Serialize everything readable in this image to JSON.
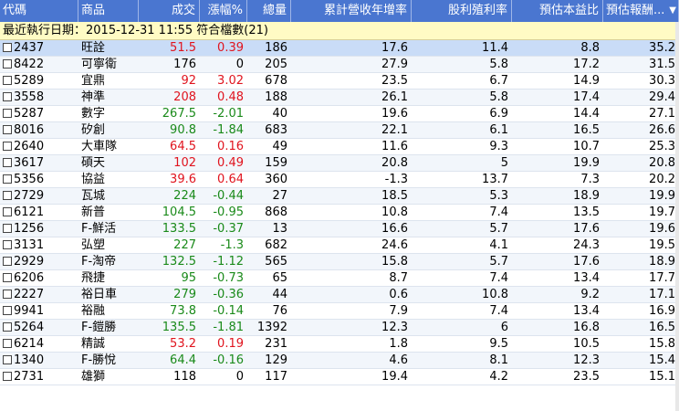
{
  "columns": {
    "code": "代碼",
    "name": "商品",
    "price": "成交",
    "change_pct": "漲幅%",
    "volume": "總量",
    "rev_growth": "累計營收年增率",
    "dividend_yield": "股利殖利率",
    "est_pe": "預估本益比",
    "est_return": "預估報酬..."
  },
  "info_bar": "最近執行日期：2015-12-31 11:55 符合檔數(21)",
  "colors": {
    "header": "#4a76d0",
    "info": "#fffbc4",
    "up": "#e0141e",
    "down": "#1a8a1a"
  },
  "rows": [
    {
      "code": "2437",
      "name": "旺詮",
      "price": "51.5",
      "chg": "0.39",
      "dir": "up",
      "vol": "186",
      "rev": "17.6",
      "div": "11.4",
      "pe": "8.8",
      "ret": "35.2"
    },
    {
      "code": "8422",
      "name": "可寧衛",
      "price": "176",
      "chg": "0",
      "dir": "flat",
      "vol": "205",
      "rev": "27.9",
      "div": "5.8",
      "pe": "17.2",
      "ret": "31.5"
    },
    {
      "code": "5289",
      "name": "宜鼎",
      "price": "92",
      "chg": "3.02",
      "dir": "up",
      "vol": "678",
      "rev": "23.5",
      "div": "6.7",
      "pe": "14.9",
      "ret": "30.3"
    },
    {
      "code": "3558",
      "name": "神準",
      "price": "208",
      "chg": "0.48",
      "dir": "up",
      "vol": "188",
      "rev": "26.1",
      "div": "5.8",
      "pe": "17.4",
      "ret": "29.4"
    },
    {
      "code": "5287",
      "name": "數字",
      "price": "267.5",
      "chg": "-2.01",
      "dir": "down",
      "vol": "40",
      "rev": "19.6",
      "div": "6.9",
      "pe": "14.4",
      "ret": "27.1"
    },
    {
      "code": "8016",
      "name": "矽創",
      "price": "90.8",
      "chg": "-1.84",
      "dir": "down",
      "vol": "683",
      "rev": "22.1",
      "div": "6.1",
      "pe": "16.5",
      "ret": "26.6"
    },
    {
      "code": "2640",
      "name": "大車隊",
      "price": "64.5",
      "chg": "0.16",
      "dir": "up",
      "vol": "49",
      "rev": "11.6",
      "div": "9.3",
      "pe": "10.7",
      "ret": "25.3"
    },
    {
      "code": "3617",
      "name": "碩天",
      "price": "102",
      "chg": "0.49",
      "dir": "up",
      "vol": "159",
      "rev": "20.8",
      "div": "5",
      "pe": "19.9",
      "ret": "20.8"
    },
    {
      "code": "5356",
      "name": "協益",
      "price": "39.6",
      "chg": "0.64",
      "dir": "up",
      "vol": "360",
      "rev": "-1.3",
      "div": "13.7",
      "pe": "7.3",
      "ret": "20.2"
    },
    {
      "code": "2729",
      "name": "瓦城",
      "price": "224",
      "chg": "-0.44",
      "dir": "down",
      "vol": "27",
      "rev": "18.5",
      "div": "5.3",
      "pe": "18.9",
      "ret": "19.9"
    },
    {
      "code": "6121",
      "name": "新普",
      "price": "104.5",
      "chg": "-0.95",
      "dir": "down",
      "vol": "868",
      "rev": "10.8",
      "div": "7.4",
      "pe": "13.5",
      "ret": "19.7"
    },
    {
      "code": "1256",
      "name": "F-鮮活",
      "price": "133.5",
      "chg": "-0.37",
      "dir": "down",
      "vol": "13",
      "rev": "16.6",
      "div": "5.7",
      "pe": "17.6",
      "ret": "19.6"
    },
    {
      "code": "3131",
      "name": "弘塑",
      "price": "227",
      "chg": "-1.3",
      "dir": "down",
      "vol": "682",
      "rev": "24.6",
      "div": "4.1",
      "pe": "24.3",
      "ret": "19.5"
    },
    {
      "code": "2929",
      "name": "F-淘帝",
      "price": "132.5",
      "chg": "-1.12",
      "dir": "down",
      "vol": "565",
      "rev": "15.8",
      "div": "5.7",
      "pe": "17.6",
      "ret": "18.9"
    },
    {
      "code": "6206",
      "name": "飛捷",
      "price": "95",
      "chg": "-0.73",
      "dir": "down",
      "vol": "65",
      "rev": "8.7",
      "div": "7.4",
      "pe": "13.4",
      "ret": "17.7"
    },
    {
      "code": "2227",
      "name": "裕日車",
      "price": "279",
      "chg": "-0.36",
      "dir": "down",
      "vol": "44",
      "rev": "0.6",
      "div": "10.8",
      "pe": "9.2",
      "ret": "17.1"
    },
    {
      "code": "9941",
      "name": "裕融",
      "price": "73.8",
      "chg": "-0.14",
      "dir": "down",
      "vol": "76",
      "rev": "7.9",
      "div": "7.4",
      "pe": "13.4",
      "ret": "16.9"
    },
    {
      "code": "5264",
      "name": "F-鎧勝",
      "price": "135.5",
      "chg": "-1.81",
      "dir": "down",
      "vol": "1392",
      "rev": "12.3",
      "div": "6",
      "pe": "16.8",
      "ret": "16.5"
    },
    {
      "code": "6214",
      "name": "精誠",
      "price": "53.2",
      "chg": "0.19",
      "dir": "up",
      "vol": "231",
      "rev": "1.8",
      "div": "9.5",
      "pe": "10.5",
      "ret": "15.8"
    },
    {
      "code": "1340",
      "name": "F-勝悅",
      "price": "64.4",
      "chg": "-0.16",
      "dir": "down",
      "vol": "129",
      "rev": "4.6",
      "div": "8.1",
      "pe": "12.3",
      "ret": "15.4"
    },
    {
      "code": "2731",
      "name": "雄獅",
      "price": "118",
      "chg": "0",
      "dir": "flat",
      "vol": "117",
      "rev": "19.4",
      "div": "4.2",
      "pe": "23.5",
      "ret": "15.1"
    }
  ]
}
